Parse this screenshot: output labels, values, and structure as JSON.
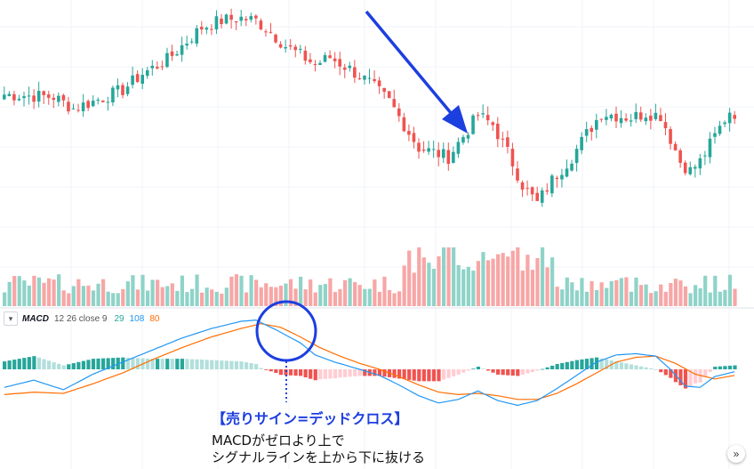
{
  "indicator": {
    "name": "MACD",
    "params": "12 26 close 9",
    "value_hist": "29",
    "value_macd": "108",
    "value_signal": "80",
    "chevron_icon": "chevron-down-icon"
  },
  "annotation": {
    "title": "【売りサイン=デッドクロス】",
    "line1": "MACDがゼロより上で",
    "line2": "シグナルラインを上から下に抜ける"
  },
  "scroll_button": {
    "icon": "double-chevron-right-icon",
    "glyph": "»"
  },
  "colors": {
    "up": "#26a69a",
    "down": "#ef5350",
    "vol_up": "#8fd3c8",
    "vol_down": "#f7a6a6",
    "macd_line": "#2196f3",
    "signal_line": "#ff6d00",
    "hist_up_strong": "#26a69a",
    "hist_up_weak": "#b2dfdb",
    "hist_down_strong": "#ef5350",
    "hist_down_weak": "#ffcdd2",
    "annotation": "#1c3fe0"
  },
  "chart_data": {
    "type": "candlestick",
    "title": "",
    "xlabel": "",
    "ylabel": "",
    "grid": true,
    "price_anchors": [
      [
        0,
        63
      ],
      [
        10,
        62
      ],
      [
        14,
        57
      ],
      [
        18,
        60
      ],
      [
        24,
        65
      ],
      [
        28,
        72
      ],
      [
        33,
        78
      ],
      [
        37,
        86
      ],
      [
        40,
        92
      ],
      [
        44,
        95
      ],
      [
        48,
        96
      ],
      [
        51,
        95
      ],
      [
        54,
        90
      ],
      [
        57,
        84
      ],
      [
        60,
        80
      ],
      [
        63,
        76
      ],
      [
        66,
        79
      ],
      [
        70,
        74
      ],
      [
        74,
        68
      ],
      [
        78,
        60
      ],
      [
        81,
        50
      ],
      [
        84,
        40
      ],
      [
        87,
        38
      ],
      [
        90,
        36
      ],
      [
        93,
        45
      ],
      [
        96,
        54
      ],
      [
        99,
        50
      ],
      [
        102,
        38
      ],
      [
        105,
        24
      ],
      [
        108,
        16
      ],
      [
        111,
        26
      ],
      [
        115,
        36
      ],
      [
        118,
        46
      ],
      [
        121,
        55
      ],
      [
        124,
        54
      ],
      [
        127,
        53
      ],
      [
        130,
        55
      ],
      [
        133,
        54
      ],
      [
        135,
        44
      ],
      [
        137,
        34
      ],
      [
        139,
        30
      ],
      [
        141,
        34
      ],
      [
        144,
        45
      ],
      [
        147,
        56
      ],
      [
        148,
        55
      ]
    ],
    "macd_anchors": [
      [
        0,
        -15
      ],
      [
        6,
        -9
      ],
      [
        12,
        -17
      ],
      [
        18,
        -4
      ],
      [
        24,
        6
      ],
      [
        30,
        16
      ],
      [
        36,
        26
      ],
      [
        42,
        34
      ],
      [
        48,
        40
      ],
      [
        51,
        41
      ],
      [
        55,
        33
      ],
      [
        60,
        22
      ],
      [
        63,
        12
      ],
      [
        67,
        6
      ],
      [
        72,
        0
      ],
      [
        76,
        -5
      ],
      [
        80,
        -13
      ],
      [
        84,
        -22
      ],
      [
        88,
        -28
      ],
      [
        92,
        -25
      ],
      [
        96,
        -18
      ],
      [
        100,
        -26
      ],
      [
        104,
        -30
      ],
      [
        108,
        -26
      ],
      [
        112,
        -16
      ],
      [
        116,
        -5
      ],
      [
        120,
        6
      ],
      [
        124,
        12
      ],
      [
        128,
        13
      ],
      [
        132,
        11
      ],
      [
        135,
        0
      ],
      [
        138,
        -14
      ],
      [
        141,
        -15
      ],
      [
        144,
        -6
      ],
      [
        148,
        -2
      ]
    ],
    "signal_anchors": [
      [
        0,
        -21
      ],
      [
        6,
        -19
      ],
      [
        12,
        -20
      ],
      [
        18,
        -12
      ],
      [
        24,
        -3
      ],
      [
        30,
        8
      ],
      [
        36,
        18
      ],
      [
        42,
        27
      ],
      [
        48,
        34
      ],
      [
        52,
        38
      ],
      [
        56,
        35
      ],
      [
        60,
        27
      ],
      [
        64,
        18
      ],
      [
        68,
        11
      ],
      [
        72,
        5
      ],
      [
        76,
        0
      ],
      [
        80,
        -6
      ],
      [
        84,
        -13
      ],
      [
        88,
        -19
      ],
      [
        92,
        -21
      ],
      [
        96,
        -20
      ],
      [
        100,
        -22
      ],
      [
        104,
        -25
      ],
      [
        108,
        -25
      ],
      [
        112,
        -20
      ],
      [
        116,
        -12
      ],
      [
        120,
        -3
      ],
      [
        124,
        6
      ],
      [
        128,
        10
      ],
      [
        132,
        11
      ],
      [
        136,
        5
      ],
      [
        140,
        -4
      ],
      [
        144,
        -8
      ],
      [
        148,
        -5
      ]
    ]
  }
}
